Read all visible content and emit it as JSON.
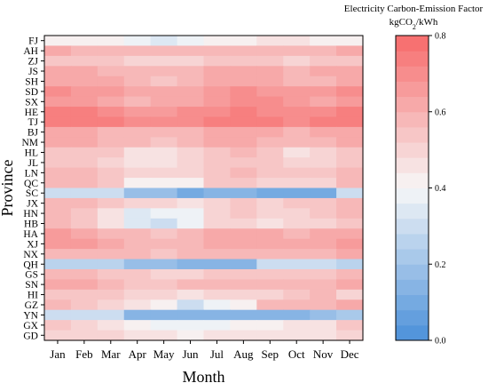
{
  "chart_data": {
    "type": "heatmap",
    "title": "",
    "xlabel": "Month",
    "ylabel": "Province",
    "x_categories": [
      "Jan",
      "Feb",
      "Mar",
      "Apr",
      "May",
      "Jun",
      "Jul",
      "Aug",
      "Sep",
      "Oct",
      "Nov",
      "Dec"
    ],
    "y_categories": [
      "FJ",
      "AH",
      "ZJ",
      "JS",
      "SH",
      "SD",
      "SX",
      "HE",
      "TJ",
      "BJ",
      "NM",
      "HL",
      "JL",
      "LN",
      "QC",
      "SC",
      "JX",
      "HN",
      "HB",
      "HA",
      "XJ",
      "NX",
      "QH",
      "GS",
      "SN",
      "HI",
      "GZ",
      "YN",
      "GX",
      "GD"
    ],
    "values": [
      [
        0.43,
        0.42,
        0.43,
        0.38,
        0.35,
        0.39,
        0.43,
        0.44,
        0.45,
        0.45,
        0.44,
        0.44
      ],
      [
        0.61,
        0.6,
        0.58,
        0.57,
        0.56,
        0.57,
        0.59,
        0.6,
        0.59,
        0.59,
        0.6,
        0.61
      ],
      [
        0.55,
        0.54,
        0.52,
        0.5,
        0.49,
        0.5,
        0.52,
        0.53,
        0.52,
        0.51,
        0.52,
        0.54
      ],
      [
        0.63,
        0.62,
        0.6,
        0.58,
        0.58,
        0.59,
        0.61,
        0.62,
        0.61,
        0.6,
        0.61,
        0.63
      ],
      [
        0.64,
        0.63,
        0.61,
        0.57,
        0.55,
        0.57,
        0.62,
        0.63,
        0.61,
        0.59,
        0.6,
        0.62
      ],
      [
        0.68,
        0.67,
        0.65,
        0.63,
        0.62,
        0.64,
        0.67,
        0.68,
        0.66,
        0.65,
        0.66,
        0.68
      ],
      [
        0.66,
        0.65,
        0.62,
        0.6,
        0.61,
        0.64,
        0.67,
        0.68,
        0.7,
        0.65,
        0.64,
        0.66
      ],
      [
        0.73,
        0.72,
        0.7,
        0.67,
        0.66,
        0.68,
        0.71,
        0.72,
        0.7,
        0.69,
        0.7,
        0.72
      ],
      [
        0.75,
        0.74,
        0.72,
        0.7,
        0.69,
        0.71,
        0.73,
        0.74,
        0.72,
        0.71,
        0.72,
        0.74
      ],
      [
        0.63,
        0.62,
        0.6,
        0.58,
        0.57,
        0.59,
        0.63,
        0.64,
        0.61,
        0.6,
        0.61,
        0.63
      ],
      [
        0.62,
        0.61,
        0.6,
        0.56,
        0.55,
        0.57,
        0.61,
        0.63,
        0.6,
        0.59,
        0.6,
        0.61
      ],
      [
        0.55,
        0.54,
        0.52,
        0.47,
        0.46,
        0.49,
        0.55,
        0.56,
        0.53,
        0.47,
        0.5,
        0.55
      ],
      [
        0.55,
        0.54,
        0.51,
        0.46,
        0.45,
        0.48,
        0.54,
        0.55,
        0.52,
        0.5,
        0.51,
        0.54
      ],
      [
        0.58,
        0.56,
        0.53,
        0.49,
        0.48,
        0.5,
        0.55,
        0.56,
        0.54,
        0.52,
        0.53,
        0.57
      ],
      [
        0.58,
        0.56,
        0.52,
        0.42,
        0.4,
        0.44,
        0.52,
        0.54,
        0.5,
        0.49,
        0.51,
        0.56
      ],
      [
        0.3,
        0.3,
        0.3,
        0.18,
        0.17,
        0.1,
        0.12,
        0.15,
        0.11,
        0.1,
        0.11,
        0.28
      ],
      [
        0.58,
        0.59,
        0.52,
        0.48,
        0.49,
        0.47,
        0.51,
        0.52,
        0.51,
        0.54,
        0.55,
        0.56
      ],
      [
        0.59,
        0.55,
        0.46,
        0.35,
        0.36,
        0.39,
        0.5,
        0.52,
        0.49,
        0.5,
        0.52,
        0.57
      ],
      [
        0.56,
        0.52,
        0.45,
        0.35,
        0.32,
        0.38,
        0.48,
        0.5,
        0.47,
        0.48,
        0.5,
        0.55
      ],
      [
        0.65,
        0.63,
        0.6,
        0.56,
        0.55,
        0.57,
        0.61,
        0.63,
        0.61,
        0.6,
        0.61,
        0.64
      ],
      [
        0.67,
        0.66,
        0.62,
        0.6,
        0.57,
        0.58,
        0.63,
        0.64,
        0.63,
        0.62,
        0.63,
        0.66
      ],
      [
        0.6,
        0.6,
        0.58,
        0.56,
        0.55,
        0.56,
        0.59,
        0.6,
        0.58,
        0.58,
        0.59,
        0.61
      ],
      [
        0.27,
        0.26,
        0.27,
        0.18,
        0.17,
        0.15,
        0.16,
        0.16,
        0.28,
        0.3,
        0.3,
        0.26
      ],
      [
        0.58,
        0.57,
        0.55,
        0.52,
        0.5,
        0.51,
        0.54,
        0.55,
        0.55,
        0.54,
        0.55,
        0.58
      ],
      [
        0.63,
        0.61,
        0.58,
        0.55,
        0.54,
        0.56,
        0.59,
        0.6,
        0.58,
        0.57,
        0.59,
        0.62
      ],
      [
        0.55,
        0.55,
        0.52,
        0.5,
        0.48,
        0.47,
        0.5,
        0.5,
        0.51,
        0.54,
        0.56,
        0.5
      ],
      [
        0.6,
        0.55,
        0.48,
        0.45,
        0.42,
        0.32,
        0.38,
        0.44,
        0.6,
        0.59,
        0.6,
        0.62
      ],
      [
        0.31,
        0.3,
        0.29,
        0.16,
        0.14,
        0.12,
        0.13,
        0.15,
        0.15,
        0.14,
        0.17,
        0.2
      ],
      [
        0.52,
        0.5,
        0.45,
        0.42,
        0.39,
        0.36,
        0.38,
        0.4,
        0.42,
        0.45,
        0.47,
        0.52
      ],
      [
        0.5,
        0.5,
        0.48,
        0.45,
        0.45,
        0.44,
        0.45,
        0.46,
        0.46,
        0.46,
        0.47,
        0.49
      ]
    ],
    "colorbar": {
      "label_line1": "Electricity Carbon-Emission Factor",
      "label_unit_prefix": "kgCO",
      "label_unit_sub": "2",
      "label_unit_suffix": "/kWh",
      "ticks": [
        0.0,
        0.2,
        0.4,
        0.6,
        0.8
      ],
      "tick_labels": [
        "0.0",
        "0.2",
        "0.4",
        "0.6",
        "0.8"
      ],
      "range": [
        0.0,
        0.8
      ],
      "levels": 20,
      "colors": {
        "low": "#4a90d9",
        "mid": "#f7f7f7",
        "high": "#f76a6a"
      }
    },
    "grid": false
  }
}
